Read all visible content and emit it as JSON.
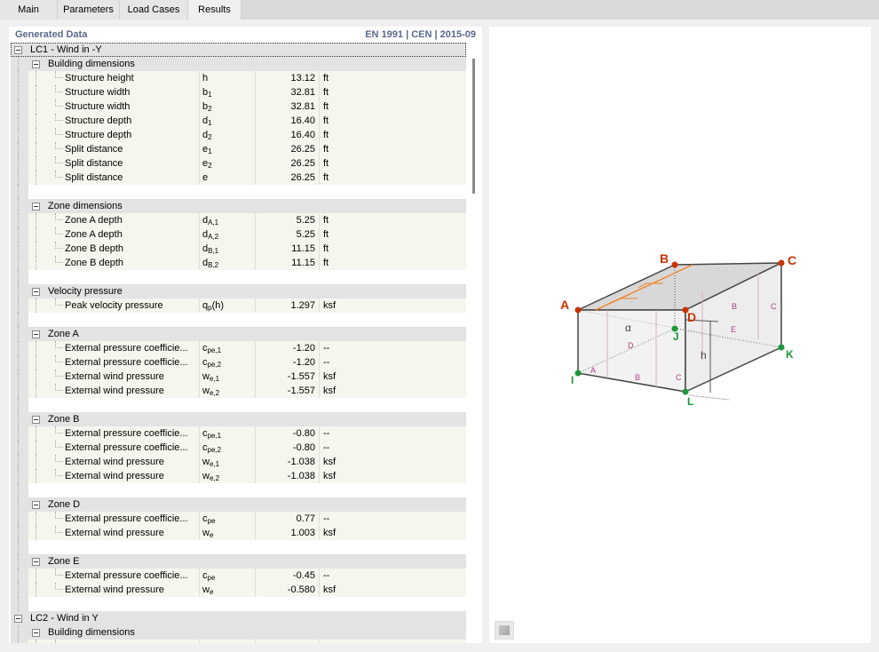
{
  "tabs": [
    "Main",
    "Parameters",
    "Load Cases",
    "Results"
  ],
  "active_tab": "Results",
  "header": {
    "title": "Generated Data",
    "standard": "EN 1991 | CEN | 2015-09"
  },
  "tree": [
    {
      "type": "lc",
      "label": "LC1 - Wind in -Y"
    },
    {
      "type": "grp",
      "label": "Building dimensions"
    },
    {
      "type": "item",
      "name": "Structure height",
      "sym": "h",
      "sub": "",
      "value": "13.12",
      "unit": "ft"
    },
    {
      "type": "item",
      "name": "Structure width",
      "sym": "b",
      "sub": "1",
      "value": "32.81",
      "unit": "ft"
    },
    {
      "type": "item",
      "name": "Structure width",
      "sym": "b",
      "sub": "2",
      "value": "32.81",
      "unit": "ft"
    },
    {
      "type": "item",
      "name": "Structure depth",
      "sym": "d",
      "sub": "1",
      "value": "16.40",
      "unit": "ft"
    },
    {
      "type": "item",
      "name": "Structure depth",
      "sym": "d",
      "sub": "2",
      "value": "16.40",
      "unit": "ft"
    },
    {
      "type": "item",
      "name": "Split distance",
      "sym": "e",
      "sub": "1",
      "value": "26.25",
      "unit": "ft"
    },
    {
      "type": "item",
      "name": "Split distance",
      "sym": "e",
      "sub": "2",
      "value": "26.25",
      "unit": "ft"
    },
    {
      "type": "item",
      "name": "Split distance",
      "sym": "e",
      "sub": "",
      "value": "26.25",
      "unit": "ft"
    },
    {
      "type": "blank"
    },
    {
      "type": "grp",
      "label": "Zone dimensions"
    },
    {
      "type": "item",
      "name": "Zone A depth",
      "sym": "d",
      "sub": "A,1",
      "value": "5.25",
      "unit": "ft"
    },
    {
      "type": "item",
      "name": "Zone A depth",
      "sym": "d",
      "sub": "A,2",
      "value": "5.25",
      "unit": "ft"
    },
    {
      "type": "item",
      "name": "Zone B depth",
      "sym": "d",
      "sub": "B,1",
      "value": "11.15",
      "unit": "ft"
    },
    {
      "type": "item",
      "name": "Zone B depth",
      "sym": "d",
      "sub": "B,2",
      "value": "11.15",
      "unit": "ft"
    },
    {
      "type": "blank"
    },
    {
      "type": "grp",
      "label": "Velocity pressure"
    },
    {
      "type": "item",
      "name": "Peak velocity pressure",
      "sym": "q",
      "sub": "p",
      "suffix": "(h)",
      "value": "1.297",
      "unit": "ksf"
    },
    {
      "type": "blank"
    },
    {
      "type": "grp",
      "label": "Zone A"
    },
    {
      "type": "item",
      "name": "External pressure coefficie...",
      "sym": "c",
      "sub": "pe,1",
      "value": "-1.20",
      "unit": "--"
    },
    {
      "type": "item",
      "name": "External pressure coefficie...",
      "sym": "c",
      "sub": "pe,2",
      "value": "-1.20",
      "unit": "--"
    },
    {
      "type": "item",
      "name": "External wind pressure",
      "sym": "w",
      "sub": "e,1",
      "value": "-1.557",
      "unit": "ksf"
    },
    {
      "type": "item",
      "name": "External wind pressure",
      "sym": "w",
      "sub": "e,2",
      "value": "-1.557",
      "unit": "ksf"
    },
    {
      "type": "blank"
    },
    {
      "type": "grp",
      "label": "Zone B"
    },
    {
      "type": "item",
      "name": "External pressure coefficie...",
      "sym": "c",
      "sub": "pe,1",
      "value": "-0.80",
      "unit": "--"
    },
    {
      "type": "item",
      "name": "External pressure coefficie...",
      "sym": "c",
      "sub": "pe,2",
      "value": "-0.80",
      "unit": "--"
    },
    {
      "type": "item",
      "name": "External wind pressure",
      "sym": "w",
      "sub": "e,1",
      "value": "-1.038",
      "unit": "ksf"
    },
    {
      "type": "item",
      "name": "External wind pressure",
      "sym": "w",
      "sub": "e,2",
      "value": "-1.038",
      "unit": "ksf"
    },
    {
      "type": "blank"
    },
    {
      "type": "grp",
      "label": "Zone D"
    },
    {
      "type": "item",
      "name": "External pressure coefficie...",
      "sym": "c",
      "sub": "pe",
      "value": "0.77",
      "unit": "--"
    },
    {
      "type": "item",
      "name": "External wind pressure",
      "sym": "w",
      "sub": "e",
      "value": "1.003",
      "unit": "ksf"
    },
    {
      "type": "blank"
    },
    {
      "type": "grp",
      "label": "Zone E"
    },
    {
      "type": "item",
      "name": "External pressure coefficie...",
      "sym": "c",
      "sub": "pe",
      "value": "-0.45",
      "unit": "--"
    },
    {
      "type": "item",
      "name": "External wind pressure",
      "sym": "w",
      "sub": "e",
      "value": "-0.580",
      "unit": "ksf"
    },
    {
      "type": "blank"
    },
    {
      "type": "lc",
      "label": "LC2 - Wind in Y"
    },
    {
      "type": "grp",
      "label": "Building dimensions"
    },
    {
      "type": "item",
      "name": "",
      "sym": "",
      "sub": "",
      "value": "",
      "unit": ""
    }
  ],
  "diagram": {
    "points_red": [
      "A",
      "B",
      "C",
      "D"
    ],
    "points_green": [
      "I",
      "J",
      "K",
      "L"
    ],
    "zones": [
      "A",
      "B",
      "C",
      "D",
      "E"
    ],
    "height_label": "h",
    "angle_label": "α",
    "colors": {
      "red": "#cc3300",
      "green": "#1a9a3a",
      "zone": "#b04080",
      "ridge": "#f08020"
    }
  },
  "toolbar": {
    "view_button_icon": "view-options-icon"
  }
}
